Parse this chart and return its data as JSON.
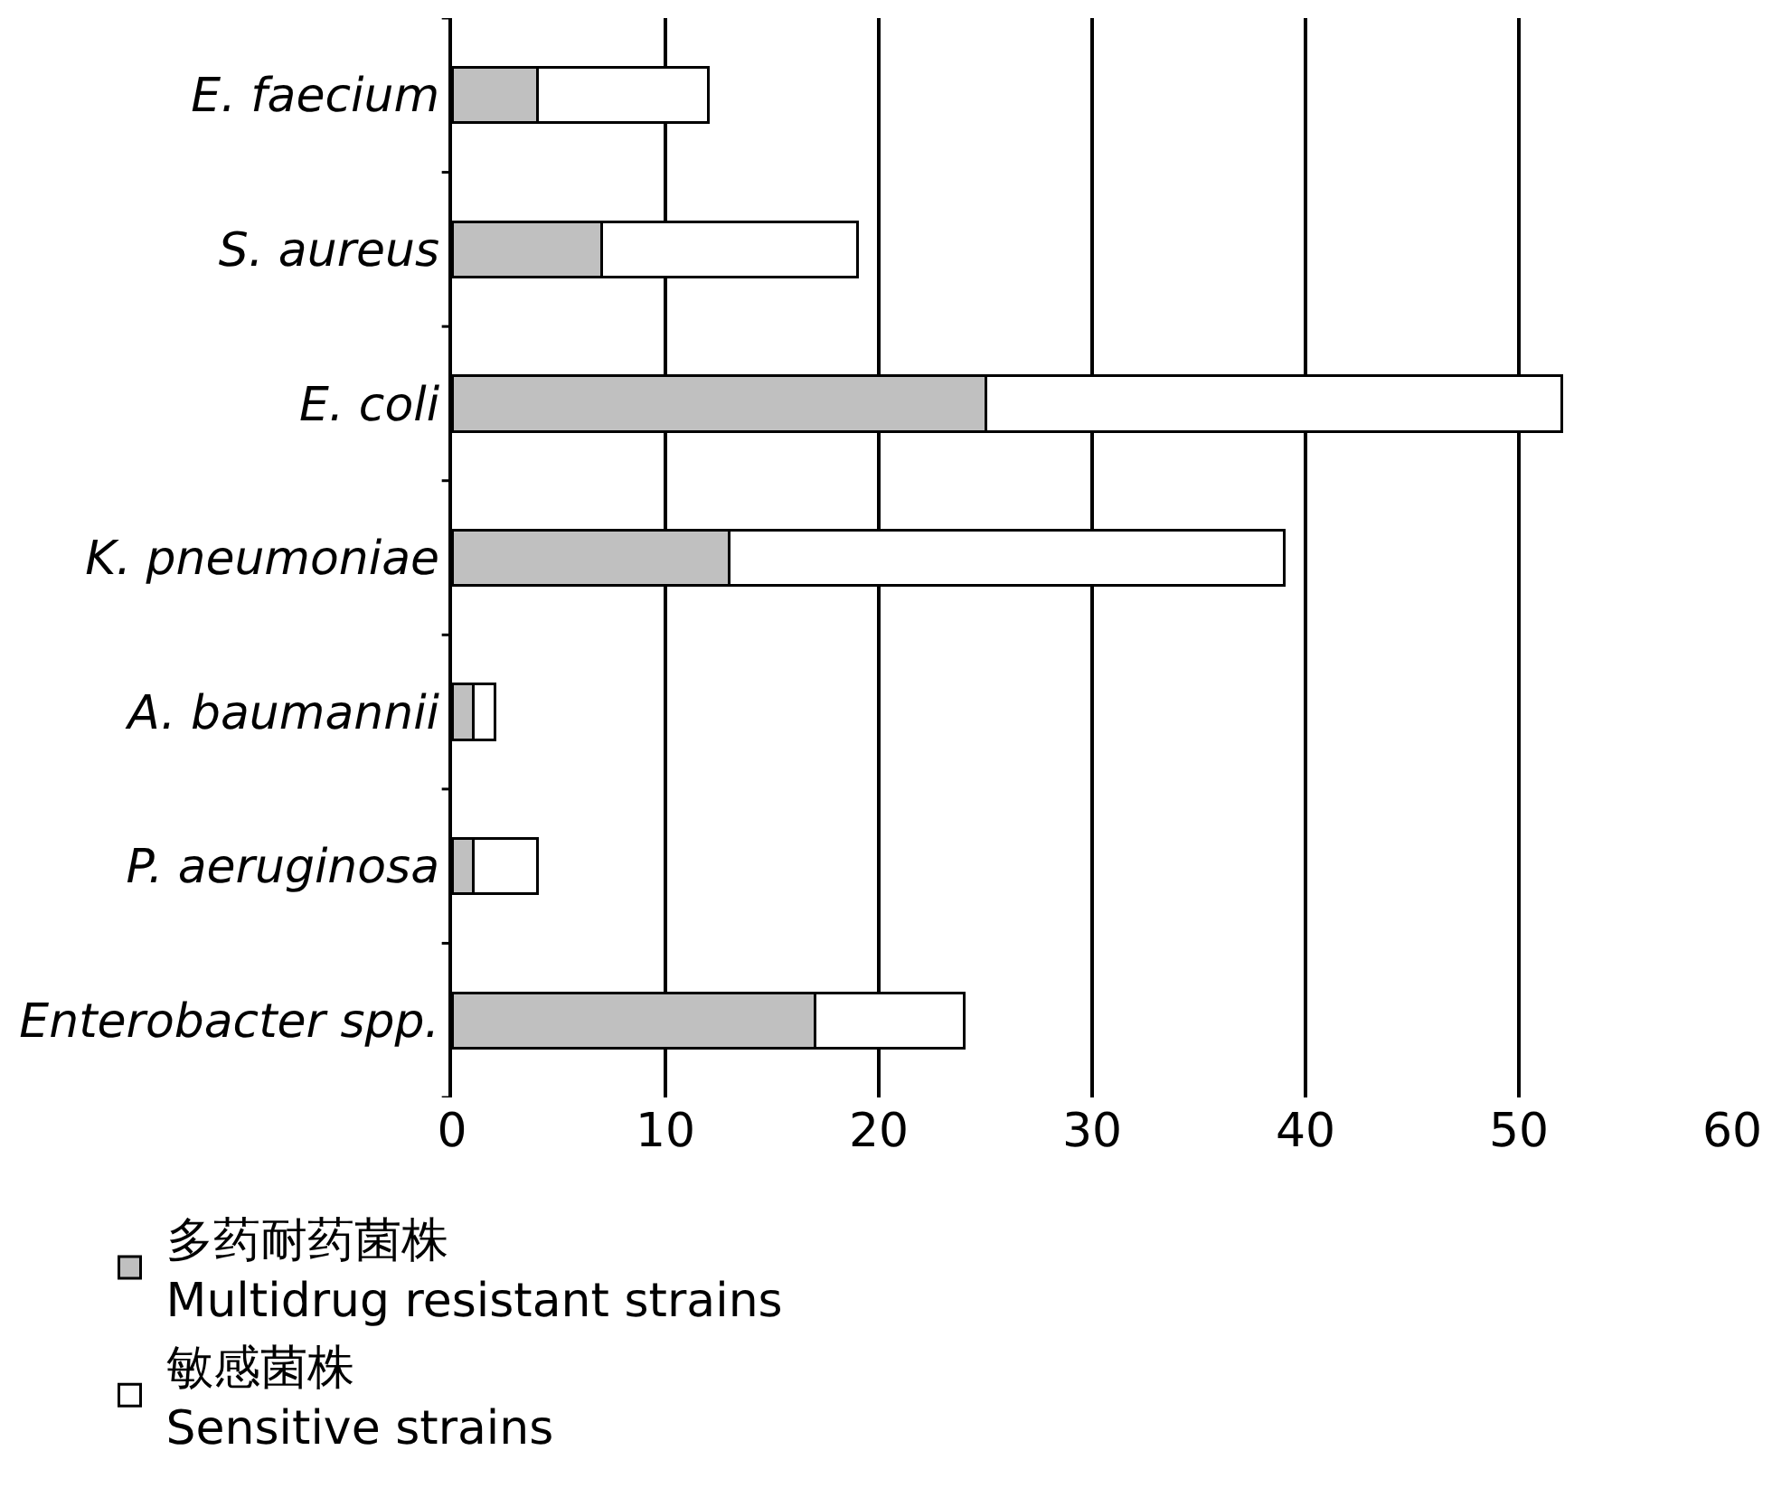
{
  "chart_data": {
    "type": "bar",
    "orientation": "horizontal",
    "stacked": true,
    "categories": [
      "E. faecium",
      "S. aureus",
      "E. coli",
      "K. pneumoniae",
      "A. baumannii",
      "P. aeruginosa",
      "Enterobacter spp."
    ],
    "series": [
      {
        "name": "多药耐药菌株\nMultidrug resistant strains",
        "color": "#c0c0c0",
        "values": [
          4,
          7,
          25,
          13,
          1,
          1,
          17
        ]
      },
      {
        "name": "敏感菌株\nSensitive strains",
        "color": "#ffffff",
        "values": [
          8,
          12,
          27,
          26,
          1,
          3,
          7
        ]
      }
    ],
    "xlim": [
      0,
      60
    ],
    "xticks": [
      0,
      10,
      20,
      30,
      40,
      50,
      60
    ],
    "grid": "x",
    "legend": "bottom"
  }
}
